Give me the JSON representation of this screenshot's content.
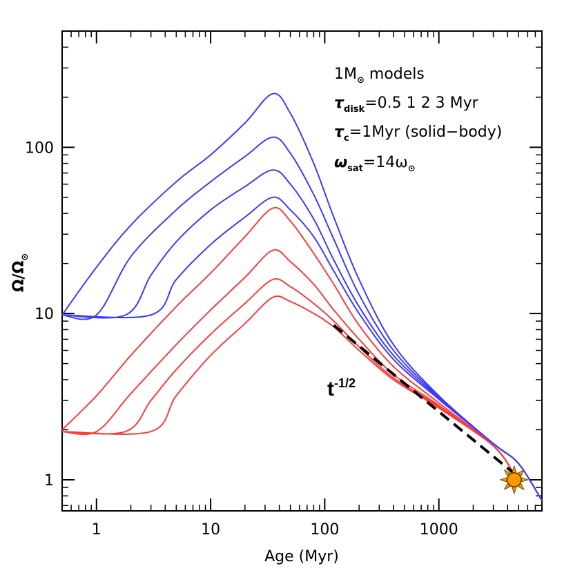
{
  "chart_data": {
    "type": "line",
    "title": "",
    "xlabel": "Age (Myr)",
    "ylabel_main": "Ω/Ω",
    "ylabel_sub": "⊙",
    "xscale": "log",
    "yscale": "log",
    "xlim": [
      0.5,
      8000
    ],
    "ylim": [
      0.65,
      500
    ],
    "xticks": [
      {
        "value": 1,
        "label": "1"
      },
      {
        "value": 10,
        "label": "10"
      },
      {
        "value": 100,
        "label": "100"
      },
      {
        "value": 1000,
        "label": "1000"
      }
    ],
    "yticks": [
      {
        "value": 1,
        "label": "1"
      },
      {
        "value": 10,
        "label": "10"
      },
      {
        "value": 100,
        "label": "100"
      }
    ],
    "annotations": {
      "line1": {
        "main": "1M",
        "sub": "⊙",
        "rest": " models"
      },
      "line2": {
        "main": "τ",
        "sub": "disk",
        "rest": "=0.5  1  2  3  Myr"
      },
      "line3": {
        "main": "τ",
        "sub": "c",
        "rest": "=1Myr  (solid−body)"
      },
      "line4": {
        "main": "ω",
        "sub": "sat",
        "rest": "=14ω",
        "sub2": "⊙"
      }
    },
    "power_law_label": {
      "base": "t",
      "exponent": "-1/2"
    },
    "colors": {
      "fast": "#3a3aff",
      "slow": "#ff3a3a",
      "powerlaw": "#000000",
      "sun": "#ff9900",
      "sun_outline": "#6b4a00"
    },
    "sun_marker": {
      "age_myr": 4570,
      "omega": 1.0
    },
    "power_law": [
      {
        "age": 120,
        "omega": 8.5
      },
      {
        "age": 4500,
        "omega": 1.1
      }
    ],
    "series": [
      {
        "name": "fast τdisk=0.5",
        "color_key": "fast",
        "points": [
          [
            0.5,
            9.8
          ],
          [
            1,
            19
          ],
          [
            2,
            34
          ],
          [
            5,
            62
          ],
          [
            10,
            90
          ],
          [
            20,
            140
          ],
          [
            35,
            210
          ],
          [
            50,
            160
          ],
          [
            80,
            80
          ],
          [
            120,
            38
          ],
          [
            200,
            16
          ],
          [
            400,
            6.5
          ],
          [
            1000,
            3.2
          ],
          [
            3000,
            1.65
          ],
          [
            5000,
            1.25
          ],
          [
            8000,
            0.75
          ]
        ]
      },
      {
        "name": "fast τdisk=1",
        "color_key": "fast",
        "points": [
          [
            0.5,
            9.8
          ],
          [
            1,
            9.8
          ],
          [
            2,
            22
          ],
          [
            5,
            42
          ],
          [
            10,
            62
          ],
          [
            20,
            88
          ],
          [
            35,
            115
          ],
          [
            50,
            92
          ],
          [
            80,
            52
          ],
          [
            120,
            28
          ],
          [
            200,
            13
          ],
          [
            400,
            6
          ],
          [
            1000,
            3.15
          ],
          [
            3000,
            1.65
          ],
          [
            5000,
            1.25
          ],
          [
            8000,
            0.75
          ]
        ]
      },
      {
        "name": "fast τdisk=2",
        "color_key": "fast",
        "points": [
          [
            0.5,
            9.8
          ],
          [
            1.8,
            9.8
          ],
          [
            3,
            17
          ],
          [
            5,
            27
          ],
          [
            10,
            42
          ],
          [
            20,
            58
          ],
          [
            35,
            73
          ],
          [
            50,
            60
          ],
          [
            80,
            37
          ],
          [
            120,
            21
          ],
          [
            200,
            11
          ],
          [
            400,
            5.6
          ],
          [
            1000,
            3.1
          ],
          [
            3000,
            1.65
          ],
          [
            5000,
            1.25
          ],
          [
            8000,
            0.75
          ]
        ]
      },
      {
        "name": "fast τdisk=3",
        "color_key": "fast",
        "points": [
          [
            0.5,
            9.8
          ],
          [
            3,
            9.8
          ],
          [
            5,
            16
          ],
          [
            10,
            26
          ],
          [
            20,
            38
          ],
          [
            35,
            50
          ],
          [
            50,
            42
          ],
          [
            80,
            29
          ],
          [
            120,
            18
          ],
          [
            200,
            10
          ],
          [
            400,
            5.3
          ],
          [
            1000,
            3.05
          ],
          [
            3000,
            1.65
          ],
          [
            5000,
            1.25
          ],
          [
            8000,
            0.75
          ]
        ]
      },
      {
        "name": "slow τdisk=0.5",
        "color_key": "slow",
        "points": [
          [
            0.5,
            2
          ],
          [
            1,
            3.2
          ],
          [
            2,
            5.6
          ],
          [
            5,
            11
          ],
          [
            10,
            17.5
          ],
          [
            20,
            29
          ],
          [
            35,
            43
          ],
          [
            50,
            36
          ],
          [
            80,
            23
          ],
          [
            120,
            15
          ],
          [
            200,
            8.5
          ],
          [
            400,
            4.8
          ],
          [
            1000,
            2.9
          ],
          [
            3000,
            1.6
          ],
          [
            4500,
            1.1
          ]
        ]
      },
      {
        "name": "slow τdisk=1",
        "color_key": "slow",
        "points": [
          [
            0.5,
            1.95
          ],
          [
            1,
            1.95
          ],
          [
            2,
            3.3
          ],
          [
            5,
            6.5
          ],
          [
            10,
            10.5
          ],
          [
            20,
            16.5
          ],
          [
            35,
            24
          ],
          [
            50,
            20.5
          ],
          [
            80,
            15
          ],
          [
            120,
            10.5
          ],
          [
            200,
            7
          ],
          [
            400,
            4.3
          ],
          [
            1000,
            2.8
          ],
          [
            3000,
            1.6
          ],
          [
            4500,
            1.1
          ]
        ]
      },
      {
        "name": "slow τdisk=2",
        "color_key": "slow",
        "points": [
          [
            0.5,
            1.95
          ],
          [
            1.8,
            1.95
          ],
          [
            3,
            3
          ],
          [
            5,
            4.6
          ],
          [
            10,
            7.5
          ],
          [
            20,
            11.5
          ],
          [
            35,
            16
          ],
          [
            50,
            14.5
          ],
          [
            80,
            11.5
          ],
          [
            120,
            9
          ],
          [
            200,
            6.3
          ],
          [
            400,
            4.1
          ],
          [
            1000,
            2.75
          ],
          [
            3000,
            1.6
          ],
          [
            4500,
            1.1
          ]
        ]
      },
      {
        "name": "slow τdisk=3",
        "color_key": "slow",
        "points": [
          [
            0.5,
            1.95
          ],
          [
            3,
            1.95
          ],
          [
            5,
            3.2
          ],
          [
            10,
            5.6
          ],
          [
            20,
            8.7
          ],
          [
            35,
            12.5
          ],
          [
            50,
            11.8
          ],
          [
            80,
            10
          ],
          [
            120,
            8.3
          ],
          [
            200,
            6
          ],
          [
            400,
            4
          ],
          [
            1000,
            2.7
          ],
          [
            3000,
            1.6
          ],
          [
            4500,
            1.1
          ]
        ]
      }
    ]
  }
}
